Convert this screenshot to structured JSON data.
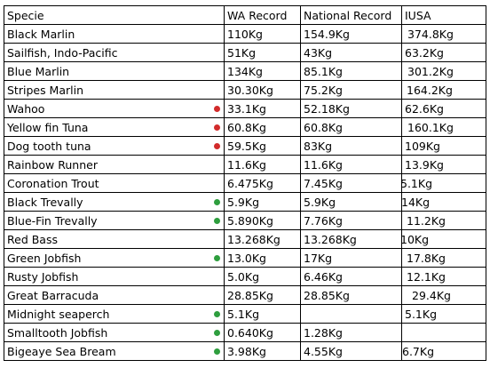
{
  "colors": {
    "red_dot": "#d22b2b",
    "green_dot": "#2e9e3e"
  },
  "headers": {
    "species": "Specie",
    "wa": "WA Record",
    "national": "National Record",
    "iusa": "IUSA"
  },
  "rows": [
    {
      "species": "Black Marlin",
      "wa": "110Kg",
      "national": "154.9Kg",
      "iusa": "374.8Kg",
      "dot": ""
    },
    {
      "species": "Sailfish, Indo-Pacific",
      "wa": "51Kg",
      "national": "43Kg",
      "iusa": "63.2Kg",
      "dot": ""
    },
    {
      "species": "Blue Marlin",
      "wa": "134Kg",
      "national": "85.1Kg",
      "iusa": "301.2Kg",
      "dot": ""
    },
    {
      "species": "Stripes Marlin",
      "wa": "30.30Kg",
      "national": "75.2Kg",
      "iusa": "164.2Kg",
      "dot": ""
    },
    {
      "species": "Wahoo",
      "wa": "33.1Kg",
      "national": "52.18Kg",
      "iusa": "62.6Kg",
      "dot": "red"
    },
    {
      "species": "Yellow fin Tuna",
      "wa": "60.8Kg",
      "national": "60.8Kg",
      "iusa": "160.1Kg",
      "dot": "red"
    },
    {
      "species": "Dog tooth tuna",
      "wa": "59.5Kg",
      "national": "83Kg",
      "iusa": "109Kg",
      "dot": "red"
    },
    {
      "species": "Rainbow Runner",
      "wa": "11.6Kg",
      "national": "11.6Kg",
      "iusa": "13.9Kg",
      "dot": ""
    },
    {
      "species": "Coronation Trout",
      "wa": "6.475Kg",
      "national": "7.45Kg",
      "iusa": "5.1Kg",
      "dot": ""
    },
    {
      "species": "Black Trevally",
      "wa": "5.9Kg",
      "national": "5.9Kg",
      "iusa": "14Kg",
      "dot": "green"
    },
    {
      "species": "Blue-Fin Trevally",
      "wa": "5.890Kg",
      "national": "7.76Kg",
      "iusa": "11.2Kg",
      "dot": "green"
    },
    {
      "species": "Red Bass",
      "wa": "13.268Kg",
      "national": "13.268Kg",
      "iusa": "10Kg",
      "dot": ""
    },
    {
      "species": "Green Jobfish",
      "wa": "13.0Kg",
      "national": "17Kg",
      "iusa": "17.8Kg",
      "dot": "green"
    },
    {
      "species": "Rusty Jobfish",
      "wa": "5.0Kg",
      "national": "6.46Kg",
      "iusa": "12.1Kg",
      "dot": ""
    },
    {
      "species": "Great Barracuda",
      "wa": "28.85Kg",
      "national": "28.85Kg",
      "iusa": "29.4Kg",
      "dot": ""
    },
    {
      "species": "Midnight seaperch",
      "wa": "5.1Kg",
      "national": "",
      "iusa": "5.1Kg",
      "dot": "green"
    },
    {
      "species": "Smalltooth Jobfish",
      "wa": "0.640Kg",
      "national": "1.28Kg",
      "iusa": "",
      "dot": "green"
    },
    {
      "species": "Bigeaye Sea Bream",
      "wa": "3.98Kg",
      "national": "4.55Kg",
      "iusa": "6.7Kg",
      "dot": "green"
    }
  ]
}
